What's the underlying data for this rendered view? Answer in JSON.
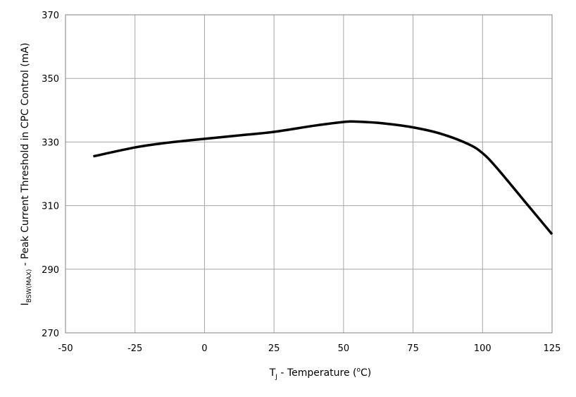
{
  "chart_data": {
    "type": "line",
    "title": "",
    "xlabel": {
      "main": "T",
      "sub": "J",
      "rest1": " - Temperature (",
      "sup": "o",
      "rest2": "C)"
    },
    "ylabel": {
      "main": "I",
      "sub": "BSW(MAX)",
      "rest": " - Peak Current Threshold in CPC Control (mA)"
    },
    "xlim": [
      -50,
      125
    ],
    "ylim": [
      270,
      370
    ],
    "xticks": [
      "-50",
      "-25",
      "0",
      "25",
      "50",
      "75",
      "100",
      "125"
    ],
    "yticks": [
      "270",
      "290",
      "310",
      "330",
      "350",
      "370"
    ],
    "grid": true,
    "series": [
      {
        "name": "IBSW(MAX)",
        "color": "#000000",
        "x": [
          -40,
          -25,
          -15,
          0,
          15,
          25,
          40,
          50,
          55,
          65,
          75,
          85,
          95,
          100,
          105,
          115,
          125
        ],
        "y": [
          325.5,
          328.3,
          329.6,
          331.0,
          332.3,
          333.2,
          335.2,
          336.3,
          336.4,
          335.8,
          334.6,
          332.6,
          329.3,
          326.5,
          322.0,
          311.5,
          301.0
        ]
      }
    ]
  }
}
